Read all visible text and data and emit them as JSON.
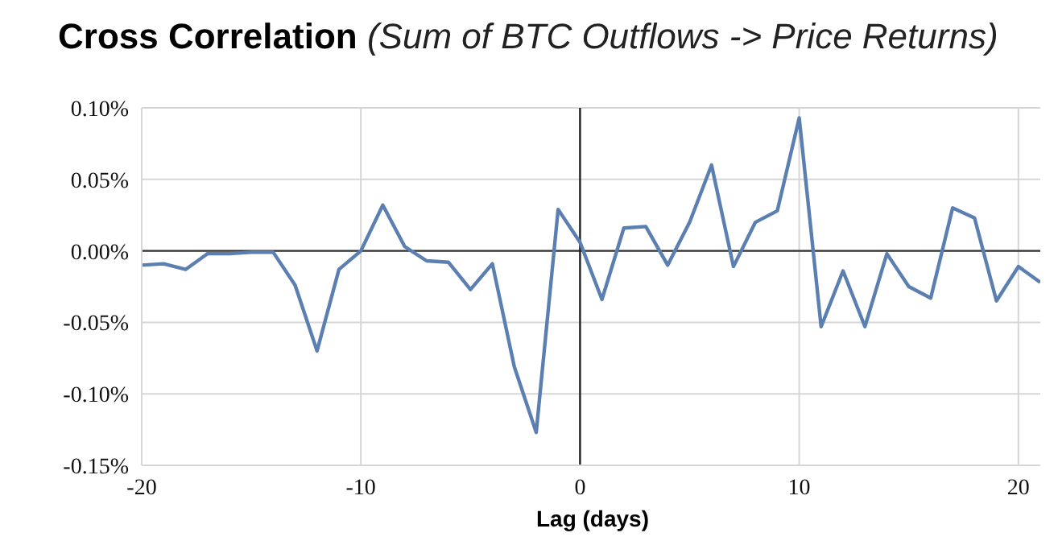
{
  "chart_data": {
    "type": "line",
    "title": "Cross Correlation",
    "subtitle": "(Sum of BTC Outflows -> Price Returns)",
    "xlabel": "Lag (days)",
    "x": [
      -20,
      -19,
      -18,
      -17,
      -16,
      -15,
      -14,
      -13,
      -12,
      -11,
      -10,
      -9,
      -8,
      -7,
      -6,
      -5,
      -4,
      -3,
      -2,
      -1,
      0,
      1,
      2,
      3,
      4,
      5,
      6,
      7,
      8,
      9,
      10,
      11,
      12,
      13,
      14,
      15,
      16,
      17,
      18,
      19,
      20,
      21
    ],
    "series": [
      {
        "color": "#5b7fb0",
        "values": [
          -0.01,
          -0.009,
          -0.013,
          -0.002,
          -0.002,
          -0.001,
          -0.001,
          -0.024,
          -0.07,
          -0.013,
          0.0,
          0.032,
          0.003,
          -0.007,
          -0.008,
          -0.027,
          -0.009,
          -0.081,
          -0.127,
          0.029,
          0.006,
          -0.034,
          0.016,
          0.017,
          -0.01,
          0.02,
          0.06,
          -0.011,
          0.02,
          0.028,
          0.093,
          -0.053,
          -0.014,
          -0.053,
          -0.002,
          -0.025,
          -0.033,
          0.03,
          0.023,
          -0.035,
          -0.011,
          -0.022
        ]
      }
    ],
    "xlim": [
      -20,
      21
    ],
    "xticks": [
      -20,
      -10,
      0,
      10,
      20
    ],
    "ylim": [
      -0.15,
      0.1
    ],
    "yticks": [
      {
        "value": -0.15,
        "label": "-0.15%"
      },
      {
        "value": -0.1,
        "label": "-0.10%"
      },
      {
        "value": -0.05,
        "label": "-0.05%"
      },
      {
        "value": 0,
        "label": "0.00%"
      },
      {
        "value": 0.05,
        "label": "0.05%"
      },
      {
        "value": 0.1,
        "label": "0.10%"
      }
    ],
    "grid": true,
    "marker": "none",
    "line_style": "solid",
    "legend": false,
    "ref_lines": [
      {
        "axis": "y",
        "value": 0,
        "color": "#333333"
      },
      {
        "axis": "x",
        "value": 0,
        "color": "#222222"
      }
    ]
  }
}
